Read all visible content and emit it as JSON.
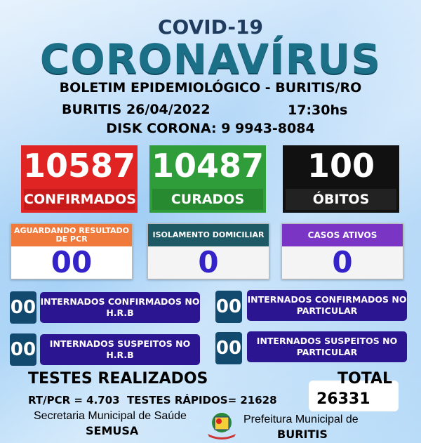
{
  "header": {
    "covid": "COVID-19",
    "title": "CORONAVÍRUS",
    "bulletin": "BOLETIM EPIDEMIOLÓGICO - BURITIS/RO",
    "date": "BURITIS 26/04/2022",
    "time": "17:30hs",
    "disk": "DISK CORONA: 9 9943-8084"
  },
  "main": {
    "confirmed": {
      "value": "10587",
      "label": "CONFIRMADOS",
      "color": "#e02424"
    },
    "cured": {
      "value": "10487",
      "label": "CURADOS",
      "color": "#2f9e3a"
    },
    "deaths": {
      "value": "100",
      "label": "ÓBITOS",
      "color": "#111111"
    }
  },
  "secondary": [
    {
      "label": "AGUARDANDO RESULTADO DE PCR",
      "value": "00",
      "color": "#ef7a3c"
    },
    {
      "label": "ISOLAMENTO DOMICILIAR",
      "value": "0",
      "color": "#1d5a66"
    },
    {
      "label": "CASOS ATIVOS",
      "value": "0",
      "color": "#7a35c4"
    }
  ],
  "hospital": [
    {
      "value": "00",
      "label": "INTERNADOS CONFIRMADOS NO H.R.B"
    },
    {
      "value": "00",
      "label": "INTERNADOS CONFIRMADOS NO PARTICULAR"
    },
    {
      "value": "00",
      "label": "INTERNADOS SUSPEITOS NO H.R.B"
    },
    {
      "value": "00",
      "label": "INTERNADOS SUSPEITOS NO PARTICULAR"
    }
  ],
  "tests": {
    "title": "TESTES REALIZADOS",
    "detail": "RT/PCR = 4.703  TESTES RÁPIDOS= 21628",
    "total_label": "TOTAL",
    "total": "26331"
  },
  "footer": {
    "secretaria": "Secretaria Municipal de Saúde",
    "semusa": "SEMUSA",
    "prefeitura": "Prefeitura Municipal de",
    "buritis": "BURITIS"
  }
}
